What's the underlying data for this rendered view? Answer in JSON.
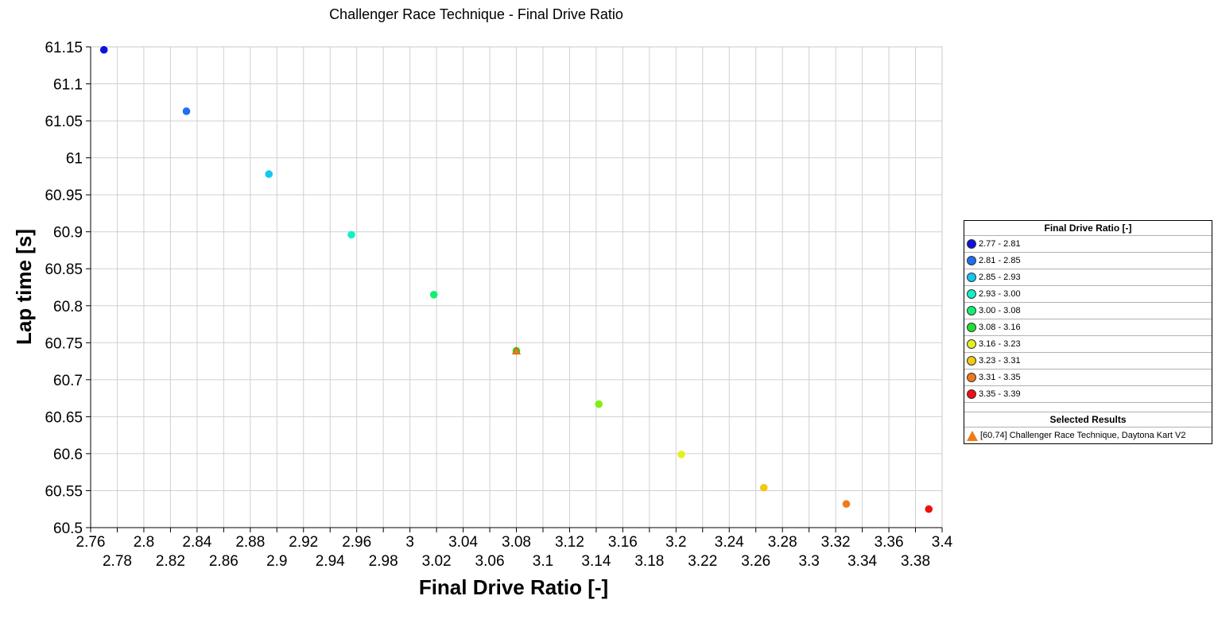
{
  "chart_data": {
    "type": "scatter",
    "title": "Challenger Race Technique - Final Drive Ratio",
    "xlabel": "Final Drive Ratio [-]",
    "ylabel": "Lap time [s]",
    "xlim": [
      2.76,
      3.4
    ],
    "ylim": [
      60.5,
      61.15
    ],
    "grid": true,
    "x_ticks_upper": [
      "2.76",
      "2.8",
      "2.84",
      "2.88",
      "2.92",
      "2.96",
      "3",
      "3.04",
      "3.08",
      "3.12",
      "3.16",
      "3.2",
      "3.24",
      "3.28",
      "3.32",
      "3.36",
      "3.4"
    ],
    "x_ticks_lower": [
      "2.78",
      "2.82",
      "2.86",
      "2.9",
      "2.94",
      "2.98",
      "3.02",
      "3.06",
      "3.1",
      "3.14",
      "3.18",
      "3.22",
      "3.26",
      "3.3",
      "3.34",
      "3.38"
    ],
    "y_ticks": [
      "61.15",
      "61.1",
      "61.05",
      "61",
      "60.95",
      "60.9",
      "60.85",
      "60.8",
      "60.75",
      "60.7",
      "60.65",
      "60.6",
      "60.55",
      "60.5"
    ],
    "points": [
      {
        "x": 2.77,
        "y": 61.146,
        "color": "#1010e0"
      },
      {
        "x": 2.832,
        "y": 61.063,
        "color": "#1f6ff0"
      },
      {
        "x": 2.894,
        "y": 60.978,
        "color": "#12c8f0"
      },
      {
        "x": 2.956,
        "y": 60.896,
        "color": "#12f0c8"
      },
      {
        "x": 3.018,
        "y": 60.815,
        "color": "#10f070"
      },
      {
        "x": 3.08,
        "y": 60.739,
        "color": "#20e030"
      },
      {
        "x": 3.142,
        "y": 60.667,
        "color": "#80f010"
      },
      {
        "x": 3.204,
        "y": 60.599,
        "color": "#e4f020"
      },
      {
        "x": 3.266,
        "y": 60.554,
        "color": "#f4c810"
      },
      {
        "x": 3.328,
        "y": 60.532,
        "color": "#f07a1a"
      },
      {
        "x": 3.39,
        "y": 60.525,
        "color": "#f01010"
      }
    ],
    "selected": {
      "x": 3.08,
      "y": 60.74,
      "color": "#f07a1a"
    },
    "legend": {
      "placement": "right",
      "title": "Final Drive Ratio [-]",
      "entries": [
        {
          "label": "2.77 - 2.81",
          "color": "#1010e0"
        },
        {
          "label": "2.81 - 2.85",
          "color": "#1f6ff0"
        },
        {
          "label": "2.85 - 2.93",
          "color": "#12c8f0"
        },
        {
          "label": "2.93 - 3.00",
          "color": "#12f0c8"
        },
        {
          "label": "3.00 - 3.08",
          "color": "#10f070"
        },
        {
          "label": "3.08 - 3.16",
          "color": "#20e030"
        },
        {
          "label": "3.16 - 3.23",
          "color": "#e4f020"
        },
        {
          "label": "3.23 - 3.31",
          "color": "#f4c810"
        },
        {
          "label": "3.31 - 3.35",
          "color": "#f07a1a"
        },
        {
          "label": "3.35 - 3.39",
          "color": "#f01010"
        }
      ],
      "selected_title": "Selected Results",
      "selected_label": "[60.74] Challenger Race Technique, Daytona Kart V2"
    }
  }
}
